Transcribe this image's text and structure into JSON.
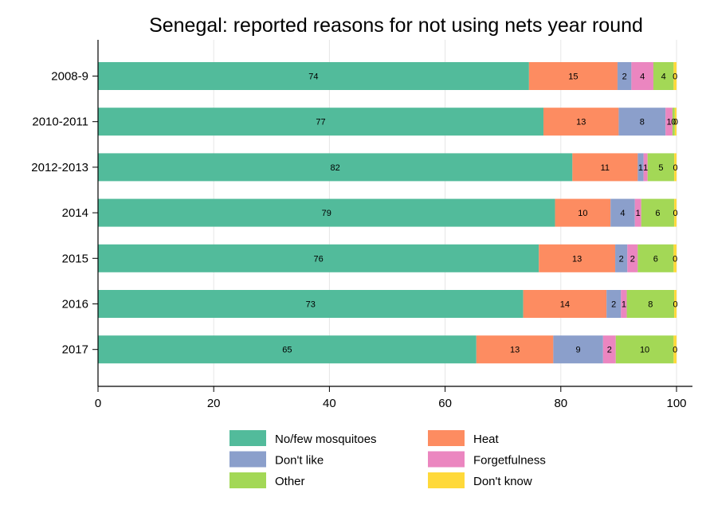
{
  "chart_data": {
    "type": "bar",
    "orientation": "horizontal",
    "stacked": true,
    "title": "Senegal: reported reasons for not using nets year round",
    "xlabel": "",
    "ylabel": "",
    "xlim": [
      0,
      100
    ],
    "xticks": [
      "0",
      "20",
      "40",
      "60",
      "80",
      "100"
    ],
    "grid": true,
    "legend_position": "bottom",
    "categories": [
      "2008-9",
      "2010-2011",
      "2012-2013",
      "2014",
      "2015",
      "2016",
      "2017"
    ],
    "series": [
      {
        "name": "No/few mosquitoes",
        "color": "#52bb9b",
        "values": [
          74.5,
          77,
          82,
          79,
          76.2,
          73.5,
          65.4
        ],
        "labels": [
          "74",
          "77",
          "82",
          "79",
          "76",
          "73",
          "65"
        ]
      },
      {
        "name": "Heat",
        "color": "#fd8c61",
        "values": [
          15.3,
          13,
          11.3,
          9.6,
          13.2,
          14.4,
          13.3
        ],
        "labels": [
          "15",
          "13",
          "11",
          "10",
          "13",
          "14",
          "13"
        ]
      },
      {
        "name": "Don't like",
        "color": "#8b9fcb",
        "values": [
          2.4,
          8.1,
          1.0,
          4.2,
          2.1,
          2.5,
          8.6
        ],
        "labels": [
          "2",
          "8",
          "1",
          "4",
          "2",
          "2",
          "9"
        ]
      },
      {
        "name": "Forgetfulness",
        "color": "#eb86c0",
        "values": [
          3.8,
          1.2,
          0.7,
          1.1,
          1.8,
          1.0,
          2.2
        ],
        "labels": [
          "4",
          "1",
          "1",
          "1",
          "2",
          "1",
          "2"
        ]
      },
      {
        "name": "Other",
        "color": "#a3d856",
        "values": [
          3.5,
          0.4,
          4.6,
          5.7,
          6.2,
          8.2,
          10.0
        ],
        "labels": [
          "4",
          "0",
          "5",
          "6",
          "6",
          "8",
          "10"
        ]
      },
      {
        "name": "Don't know",
        "color": "#ffd93a",
        "values": [
          0.5,
          0.3,
          0.4,
          0.4,
          0.5,
          0.4,
          0.5
        ],
        "labels": [
          "0",
          "0",
          "0",
          "0",
          "0",
          "0",
          "0"
        ]
      }
    ]
  }
}
